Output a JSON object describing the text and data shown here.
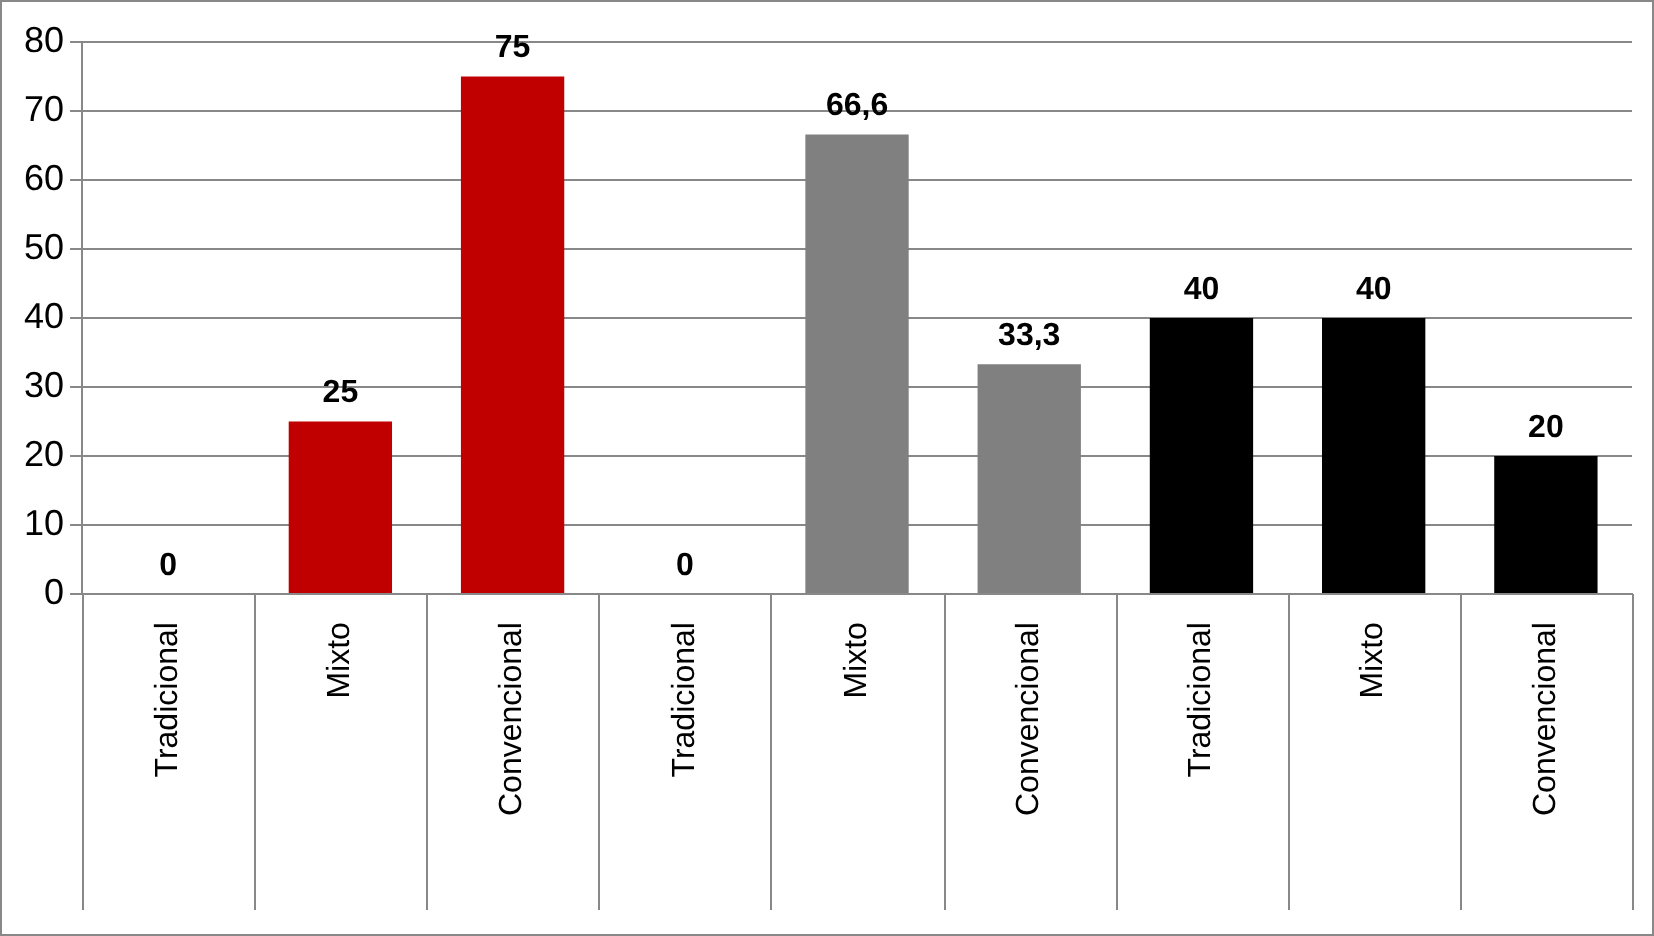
{
  "chart_data": {
    "type": "bar",
    "categories": [
      "Tradicional",
      "Mixto",
      "Convencional",
      "Tradicional",
      "Mixto",
      "Convencional",
      "Tradicional",
      "Mixto",
      "Convencional"
    ],
    "values": [
      0,
      25,
      75,
      0,
      66.6,
      33.3,
      40,
      40,
      20
    ],
    "colors": [
      "#c00000",
      "#c00000",
      "#c00000",
      "#808080",
      "#808080",
      "#808080",
      "#000000",
      "#000000",
      "#000000"
    ],
    "value_labels": [
      "0",
      "25",
      "75",
      "0",
      "66,6",
      "33,3",
      "40",
      "40",
      "20"
    ],
    "ylim": [
      0,
      80
    ],
    "yticks": [
      0,
      10,
      20,
      30,
      40,
      50,
      60,
      70,
      80
    ],
    "grid": "y",
    "legend": false
  }
}
